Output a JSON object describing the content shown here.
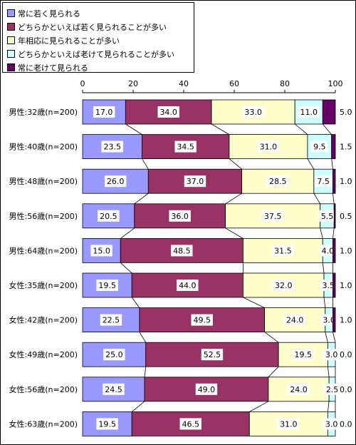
{
  "chart_data": {
    "type": "bar",
    "stacked": true,
    "orientation": "horizontal",
    "normalized_percent": true,
    "xlim": [
      0,
      100
    ],
    "xticks": [
      "0",
      "20",
      "40",
      "60",
      "80",
      "100"
    ],
    "categories": [
      "男性:32歳(n=200)",
      "男性:40歳(n=200)",
      "男性:48歳(n=200)",
      "男性:56歳(n=200)",
      "男性:64歳(n=200)",
      "女性:35歳(n=200)",
      "女性:42歳(n=200)",
      "女性:49歳(n=200)",
      "女性:56歳(n=200)",
      "女性:63歳(n=200)"
    ],
    "series": [
      {
        "name": "常に若く見られる",
        "color": "#9999ff",
        "values": [
          17.0,
          23.5,
          26.0,
          20.5,
          15.0,
          19.5,
          22.5,
          25.0,
          24.5,
          19.5
        ]
      },
      {
        "name": "どちらかといえば若く見られることが多い",
        "color": "#993366",
        "values": [
          34.0,
          34.5,
          37.0,
          36.0,
          48.5,
          44.0,
          49.5,
          52.5,
          49.0,
          46.5
        ]
      },
      {
        "name": "年相応に見られることが多い",
        "color": "#ffffcc",
        "values": [
          33.0,
          31.0,
          28.5,
          37.5,
          31.5,
          32.0,
          24.0,
          19.5,
          24.0,
          31.0
        ]
      },
      {
        "name": "どちらかといえば老けて見られることが多い",
        "color": "#ccffff",
        "values": [
          11.0,
          9.5,
          7.5,
          5.5,
          4.0,
          3.5,
          3.0,
          3.0,
          2.5,
          3.0
        ]
      },
      {
        "name": "常に老けて見られる",
        "color": "#660066",
        "values": [
          5.0,
          1.5,
          1.0,
          0.5,
          1.0,
          1.0,
          1.0,
          0.0,
          0.0,
          0.0
        ]
      }
    ],
    "legend_position": "top-left",
    "series_lines": true,
    "grid": false
  }
}
